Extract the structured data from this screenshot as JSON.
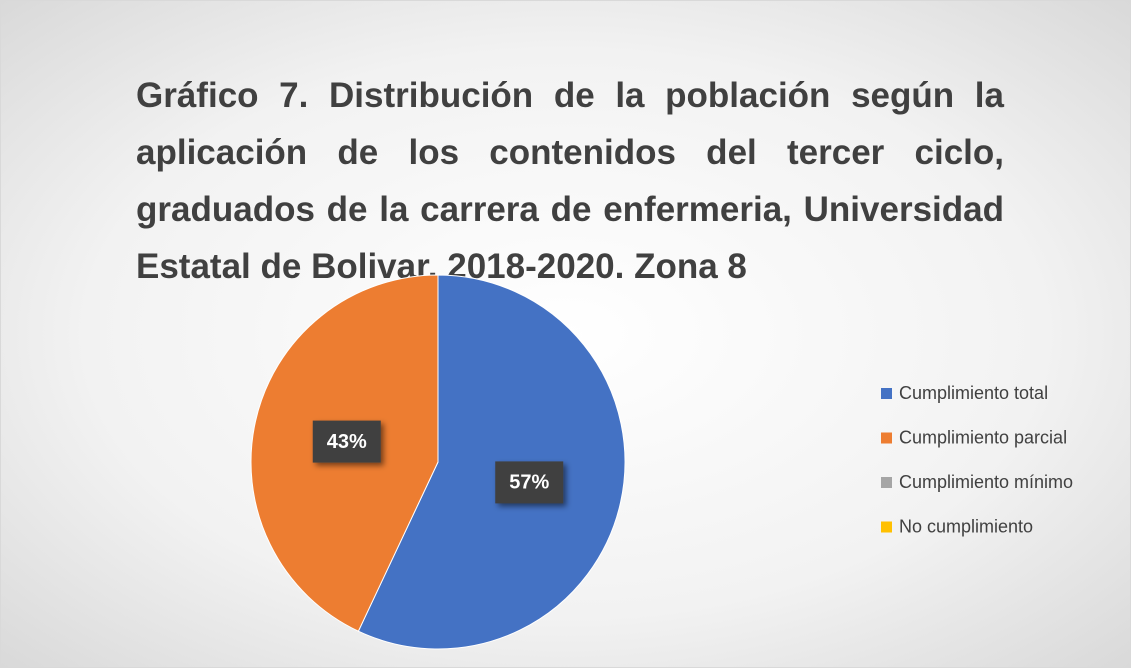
{
  "chart_data": {
    "type": "pie",
    "title": "Gráfico 7.  Distribución de la población según la aplicación de los contenidos del tercer ciclo, graduados de la carrera de enfermeria, Universidad Estatal de Bolivar, 2018-2020. Zona 8",
    "categories": [
      "Cumplimiento total",
      "Cumplimiento parcial",
      "Cumplimiento mínimo",
      "No cumplimiento"
    ],
    "values": [
      57,
      43,
      0,
      0
    ],
    "value_labels": [
      "57%",
      "43%",
      null,
      null
    ],
    "colors": [
      "#4472c4",
      "#ed7d31",
      "#a5a5a5",
      "#ffc000"
    ],
    "legend": "right"
  }
}
